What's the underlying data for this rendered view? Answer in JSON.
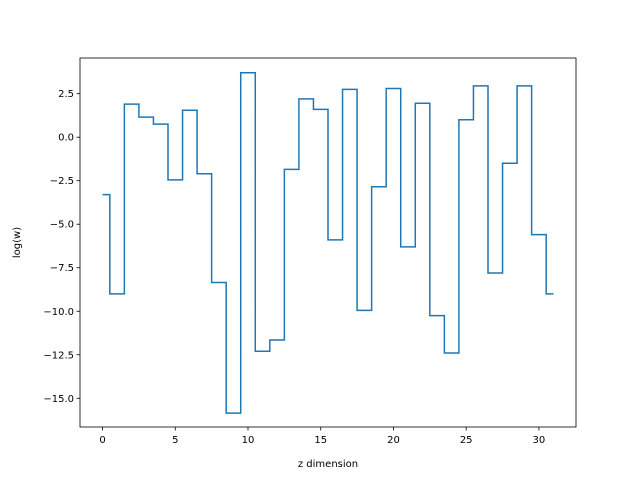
{
  "chart_data": {
    "type": "line",
    "drawstyle": "steps-mid",
    "xlabel": "z dimension",
    "ylabel": "log(w)",
    "xlim": [
      -1.55,
      32.55
    ],
    "ylim": [
      -16.65,
      4.55
    ],
    "grid": false,
    "legend": "none",
    "xticks": [
      0,
      5,
      10,
      15,
      20,
      25,
      30
    ],
    "yticks": [
      2.5,
      0.0,
      -2.5,
      -5.0,
      -7.5,
      -10.0,
      -12.5,
      -15.0
    ],
    "ytick_labels": [
      "2.5",
      "0.0",
      "−2.5",
      "−5.0",
      "−7.5",
      "−10.0",
      "−12.5",
      "−15.0"
    ],
    "x": [
      0,
      1,
      2,
      3,
      4,
      5,
      6,
      7,
      8,
      9,
      10,
      11,
      12,
      13,
      14,
      15,
      16,
      17,
      18,
      19,
      20,
      21,
      22,
      23,
      24,
      25,
      26,
      27,
      28,
      29,
      30,
      31
    ],
    "series": [
      {
        "color": "#1f77b4",
        "values": [
          -3.3,
          -9.0,
          1.9,
          1.15,
          0.75,
          -2.45,
          1.55,
          -2.1,
          -8.35,
          -15.85,
          3.7,
          -12.3,
          -11.65,
          -1.85,
          2.2,
          1.6,
          -5.9,
          2.75,
          -9.95,
          -2.85,
          2.8,
          -6.3,
          1.95,
          -10.25,
          -12.4,
          1.0,
          2.95,
          -7.8,
          -1.5,
          2.95,
          -5.6,
          -9.0
        ]
      }
    ]
  }
}
